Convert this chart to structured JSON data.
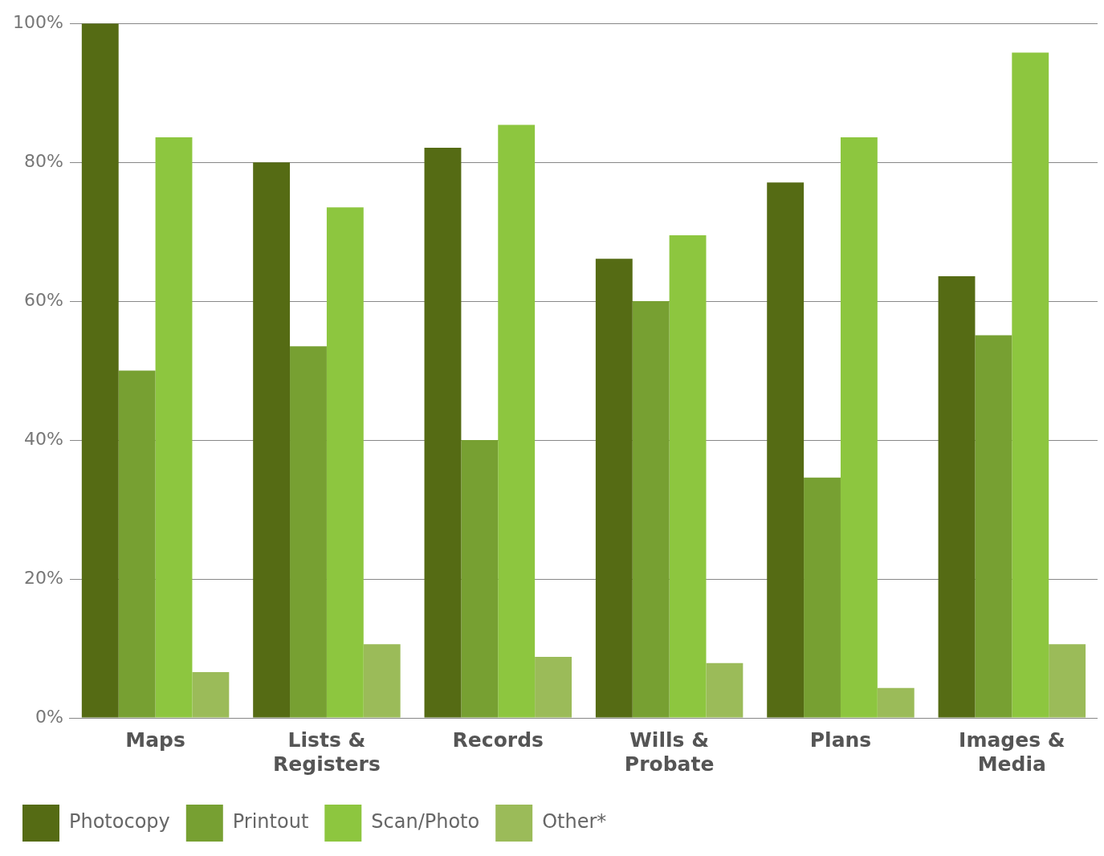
{
  "chart_data": {
    "type": "bar",
    "categories": [
      "Maps",
      "Lists & Registers",
      "Records",
      "Wills & Probate",
      "Plans",
      "Images & Media"
    ],
    "series": [
      {
        "name": "Photocopy",
        "color": "#556b14",
        "values": [
          100,
          80,
          82.1,
          66.1,
          77.1,
          63.6
        ]
      },
      {
        "name": "Printout",
        "color": "#77a032",
        "values": [
          50,
          53.5,
          40,
          60,
          34.6,
          55.1
        ]
      },
      {
        "name": "Scan/Photo",
        "color": "#8dc63f",
        "values": [
          83.6,
          73.5,
          85.4,
          69.5,
          83.6,
          95.8
        ]
      },
      {
        "name": "Other*",
        "color": "#9bbb59",
        "values": [
          6.6,
          10.6,
          8.8,
          7.9,
          4.3,
          10.6
        ]
      }
    ],
    "ylim": [
      0,
      100
    ],
    "yticks": [
      {
        "value": 0,
        "label": "0%"
      },
      {
        "value": 20,
        "label": "20%"
      },
      {
        "value": 40,
        "label": "40%"
      },
      {
        "value": 60,
        "label": "60%"
      },
      {
        "value": 80,
        "label": "80%"
      },
      {
        "value": 100,
        "label": "100%"
      }
    ],
    "grid": "y",
    "legend": "bottom left"
  }
}
